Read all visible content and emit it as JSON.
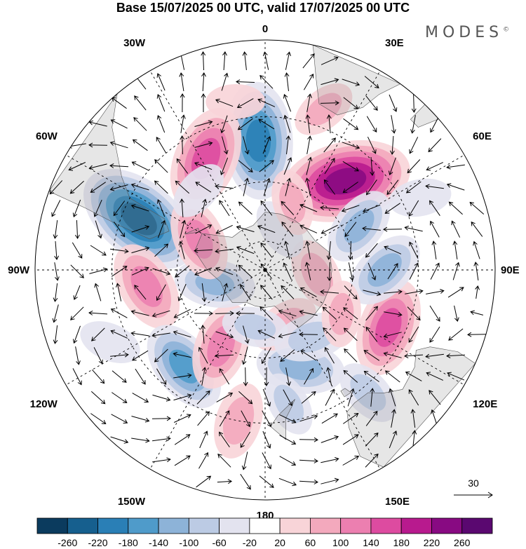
{
  "title": "Base 15/07/2025 00 UTC, valid 17/07/2025 00 UTC",
  "brand": "MODES",
  "brand_mark": "©",
  "chart_data": {
    "type": "heatmap",
    "projection": "south-polar-stereographic",
    "longitude_labels": [
      {
        "lon": 0,
        "text": "0"
      },
      {
        "lon": 30,
        "text": "30E"
      },
      {
        "lon": 60,
        "text": "60E"
      },
      {
        "lon": 90,
        "text": "90E"
      },
      {
        "lon": 120,
        "text": "120E"
      },
      {
        "lon": 150,
        "text": "150E"
      },
      {
        "lon": 180,
        "text": "180"
      },
      {
        "lon": -150,
        "text": "150W"
      },
      {
        "lon": -120,
        "text": "120W"
      },
      {
        "lon": -90,
        "text": "90W"
      },
      {
        "lon": -60,
        "text": "60W"
      },
      {
        "lon": -30,
        "text": "30W"
      }
    ],
    "reference_vector": {
      "value": 30,
      "label": "30"
    },
    "colorbar": {
      "ticks": [
        "-260",
        "-220",
        "-180",
        "-140",
        "-100",
        "-60",
        "-20",
        "20",
        "60",
        "100",
        "140",
        "180",
        "220",
        "260"
      ],
      "colors": [
        "#0b3b5e",
        "#165f8e",
        "#2a7fb6",
        "#4f9bca",
        "#8db3d8",
        "#bccbe4",
        "#e3e3ef",
        "#ffffff",
        "#f8d4d8",
        "#f3a9bd",
        "#ec7fb0",
        "#dd4ba0",
        "#b81a8e",
        "#880a82",
        "#5a0870"
      ]
    },
    "anomaly_centres": [
      {
        "lat": -47,
        "lon": -3,
        "value": -200
      },
      {
        "lat": -45,
        "lon": -68,
        "value": -230
      },
      {
        "lat": -50,
        "lon": 42,
        "value": 240
      },
      {
        "lat": -48,
        "lon": -28,
        "value": 170
      },
      {
        "lat": -50,
        "lon": -98,
        "value": 130
      },
      {
        "lat": -45,
        "lon": 115,
        "value": 150
      },
      {
        "lat": -48,
        "lon": -140,
        "value": -140
      },
      {
        "lat": -55,
        "lon": 160,
        "value": -120
      },
      {
        "lat": -50,
        "lon": 90,
        "value": -110
      },
      {
        "lat": -55,
        "lon": 65,
        "value": -100
      },
      {
        "lat": -60,
        "lon": -150,
        "value": 120
      },
      {
        "lat": -40,
        "lon": -170,
        "value": 90
      },
      {
        "lat": -72,
        "lon": -105,
        "value": -100
      },
      {
        "lat": -65,
        "lon": -65,
        "value": 110
      },
      {
        "lat": -72,
        "lon": 95,
        "value": 80
      },
      {
        "lat": -70,
        "lon": 160,
        "value": 70
      },
      {
        "lat": -70,
        "lon": -170,
        "value": -60
      },
      {
        "lat": -62,
        "lon": 145,
        "value": -90
      },
      {
        "lat": -75,
        "lon": 20,
        "value": -50
      },
      {
        "lat": -65,
        "lon": 22,
        "value": 60
      },
      {
        "lat": -45,
        "lon": 170,
        "value": -60
      },
      {
        "lat": -38,
        "lon": 140,
        "value": -70
      },
      {
        "lat": -35,
        "lon": 65,
        "value": -50
      },
      {
        "lat": -35,
        "lon": 20,
        "value": 60
      },
      {
        "lat": -35,
        "lon": -115,
        "value": -50
      },
      {
        "lat": -60,
        "lon": 120,
        "value": 60
      },
      {
        "lat": -55,
        "lon": -40,
        "value": -50
      },
      {
        "lat": -35,
        "lon": -10,
        "value": 40
      }
    ]
  }
}
